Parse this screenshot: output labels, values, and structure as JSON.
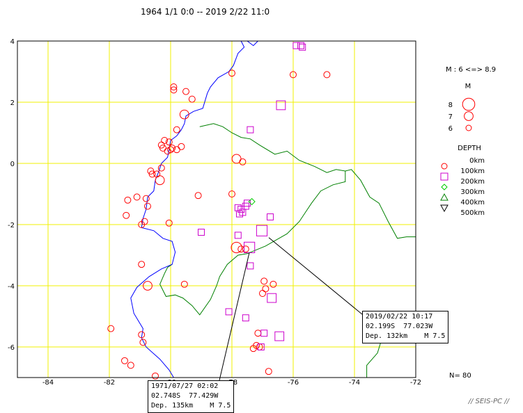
{
  "title": "1964 1/1 0:0 -- 2019 2/22 11:0",
  "map": {
    "lon_range": [
      -85,
      -72
    ],
    "lat_range": [
      -7,
      4
    ],
    "x_ticks": [
      "-84",
      "-82",
      "-80",
      "-78",
      "-76",
      "-74",
      "-72"
    ],
    "y_ticks": [
      "4",
      "2",
      "0",
      "-2",
      "-4",
      "-6"
    ],
    "grid_color": "#f0f000",
    "coast_color": "#0000ff",
    "border_color": "#008000"
  },
  "legend": {
    "m_range": "M : 6 <=> 8.9",
    "m_title": "M",
    "m_labels": [
      "8",
      "7",
      "6"
    ],
    "depth_title": "DEPTH",
    "depth_labels": [
      "0km",
      "100km",
      "200km",
      "300km",
      "400km",
      "500km"
    ],
    "depth_colors": [
      "#ff0000",
      "#cc00cc",
      "#00cc00",
      "#008000",
      "#000000"
    ]
  },
  "callouts": [
    {
      "line1": "2019/02/22 10:17",
      "line2": "02.199S  77.023W",
      "line3": "Dep. 132km    M 7.5"
    },
    {
      "line1": "1971/07/27 02:02",
      "line2": "02.748S  77.429W",
      "line3": "Dep. 135km    M 7.5"
    }
  ],
  "count_label": "N= 80",
  "footer": "// SEIS-PC //",
  "events": [
    {
      "lon": -78.0,
      "lat": 2.95,
      "m": 6.2,
      "d": "shallow"
    },
    {
      "lon": -76.0,
      "lat": 2.9,
      "m": 6.2,
      "d": "shallow"
    },
    {
      "lon": -74.9,
      "lat": 2.9,
      "m": 6.2,
      "d": "shallow"
    },
    {
      "lon": -79.9,
      "lat": 2.5,
      "m": 6.2,
      "d": "shallow"
    },
    {
      "lon": -79.9,
      "lat": 2.4,
      "m": 6.2,
      "d": "shallow"
    },
    {
      "lon": -79.5,
      "lat": 2.35,
      "m": 6.2,
      "d": "shallow"
    },
    {
      "lon": -79.3,
      "lat": 2.1,
      "m": 6.2,
      "d": "shallow"
    },
    {
      "lon": -79.55,
      "lat": 1.6,
      "m": 7.0,
      "d": "shallow"
    },
    {
      "lon": -79.8,
      "lat": 1.1,
      "m": 6.2,
      "d": "shallow"
    },
    {
      "lon": -80.2,
      "lat": 0.75,
      "m": 6.2,
      "d": "shallow"
    },
    {
      "lon": -80.3,
      "lat": 0.6,
      "m": 6.2,
      "d": "shallow"
    },
    {
      "lon": -80.05,
      "lat": 0.7,
      "m": 6.2,
      "d": "shallow"
    },
    {
      "lon": -79.65,
      "lat": 0.55,
      "m": 6.2,
      "d": "shallow"
    },
    {
      "lon": -79.95,
      "lat": 0.5,
      "m": 6.2,
      "d": "shallow"
    },
    {
      "lon": -80.1,
      "lat": 0.4,
      "m": 6.2,
      "d": "shallow"
    },
    {
      "lon": -80.0,
      "lat": 0.45,
      "m": 6.2,
      "d": "shallow"
    },
    {
      "lon": -79.8,
      "lat": 0.45,
      "m": 6.2,
      "d": "shallow"
    },
    {
      "lon": -80.25,
      "lat": 0.5,
      "m": 6.2,
      "d": "shallow"
    },
    {
      "lon": -77.85,
      "lat": 0.15,
      "m": 7.0,
      "d": "shallow"
    },
    {
      "lon": -77.65,
      "lat": 0.05,
      "m": 6.2,
      "d": "shallow"
    },
    {
      "lon": -80.3,
      "lat": -0.15,
      "m": 6.2,
      "d": "shallow"
    },
    {
      "lon": -80.65,
      "lat": -0.25,
      "m": 6.2,
      "d": "shallow"
    },
    {
      "lon": -80.6,
      "lat": -0.35,
      "m": 6.2,
      "d": "shallow"
    },
    {
      "lon": -80.45,
      "lat": -0.35,
      "m": 6.2,
      "d": "shallow"
    },
    {
      "lon": -80.35,
      "lat": -0.55,
      "m": 7.0,
      "d": "shallow"
    },
    {
      "lon": -78.0,
      "lat": -1.0,
      "m": 6.2,
      "d": "shallow"
    },
    {
      "lon": -79.1,
      "lat": -1.05,
      "m": 6.2,
      "d": "shallow"
    },
    {
      "lon": -81.4,
      "lat": -1.2,
      "m": 6.2,
      "d": "shallow"
    },
    {
      "lon": -81.1,
      "lat": -1.1,
      "m": 6.2,
      "d": "shallow"
    },
    {
      "lon": -80.8,
      "lat": -1.15,
      "m": 6.2,
      "d": "shallow"
    },
    {
      "lon": -80.75,
      "lat": -1.4,
      "m": 6.2,
      "d": "shallow"
    },
    {
      "lon": -81.45,
      "lat": -1.7,
      "m": 6.2,
      "d": "shallow"
    },
    {
      "lon": -80.85,
      "lat": -1.9,
      "m": 6.2,
      "d": "shallow"
    },
    {
      "lon": -80.95,
      "lat": -2.0,
      "m": 6.2,
      "d": "shallow"
    },
    {
      "lon": -80.05,
      "lat": -1.95,
      "m": 6.2,
      "d": "shallow"
    },
    {
      "lon": -77.85,
      "lat": -2.75,
      "m": 7.5,
      "d": "shallow"
    },
    {
      "lon": -77.7,
      "lat": -2.8,
      "m": 6.2,
      "d": "shallow"
    },
    {
      "lon": -77.55,
      "lat": -2.8,
      "m": 6.2,
      "d": "shallow"
    },
    {
      "lon": -80.95,
      "lat": -3.3,
      "m": 6.2,
      "d": "shallow"
    },
    {
      "lon": -80.75,
      "lat": -4.0,
      "m": 7.0,
      "d": "shallow"
    },
    {
      "lon": -79.55,
      "lat": -3.95,
      "m": 6.2,
      "d": "shallow"
    },
    {
      "lon": -76.95,
      "lat": -3.85,
      "m": 6.2,
      "d": "shallow"
    },
    {
      "lon": -76.65,
      "lat": -3.95,
      "m": 6.2,
      "d": "shallow"
    },
    {
      "lon": -76.9,
      "lat": -4.1,
      "m": 6.2,
      "d": "shallow"
    },
    {
      "lon": -77.0,
      "lat": -4.25,
      "m": 6.2,
      "d": "shallow"
    },
    {
      "lon": -81.95,
      "lat": -5.4,
      "m": 6.2,
      "d": "shallow"
    },
    {
      "lon": -80.95,
      "lat": -5.6,
      "m": 6.2,
      "d": "shallow"
    },
    {
      "lon": -80.9,
      "lat": -5.85,
      "m": 6.2,
      "d": "shallow"
    },
    {
      "lon": -77.15,
      "lat": -5.55,
      "m": 6.2,
      "d": "shallow"
    },
    {
      "lon": -77.2,
      "lat": -5.95,
      "m": 6.2,
      "d": "shallow"
    },
    {
      "lon": -77.1,
      "lat": -6.0,
      "m": 6.2,
      "d": "shallow"
    },
    {
      "lon": -77.3,
      "lat": -6.05,
      "m": 6.2,
      "d": "shallow"
    },
    {
      "lon": -81.5,
      "lat": -6.45,
      "m": 6.2,
      "d": "shallow"
    },
    {
      "lon": -81.3,
      "lat": -6.6,
      "m": 6.2,
      "d": "shallow"
    },
    {
      "lon": -80.5,
      "lat": -6.95,
      "m": 6.2,
      "d": "shallow"
    },
    {
      "lon": -76.8,
      "lat": -6.8,
      "m": 6.2,
      "d": "shallow"
    },
    {
      "lon": -75.9,
      "lat": 3.85,
      "m": 6.2,
      "d": "intermediate"
    },
    {
      "lon": -75.75,
      "lat": 3.85,
      "m": 6.2,
      "d": "intermediate"
    },
    {
      "lon": -75.7,
      "lat": 3.8,
      "m": 6.2,
      "d": "intermediate"
    },
    {
      "lon": -76.4,
      "lat": 1.9,
      "m": 7.0,
      "d": "intermediate"
    },
    {
      "lon": -77.4,
      "lat": 1.1,
      "m": 6.2,
      "d": "intermediate"
    },
    {
      "lon": -77.5,
      "lat": -1.3,
      "m": 6.2,
      "d": "intermediate"
    },
    {
      "lon": -77.55,
      "lat": -1.4,
      "m": 6.2,
      "d": "intermediate"
    },
    {
      "lon": -77.8,
      "lat": -1.45,
      "m": 6.2,
      "d": "intermediate"
    },
    {
      "lon": -77.7,
      "lat": -1.5,
      "m": 6.2,
      "d": "intermediate"
    },
    {
      "lon": -77.75,
      "lat": -1.65,
      "m": 6.2,
      "d": "intermediate"
    },
    {
      "lon": -77.65,
      "lat": -1.6,
      "m": 6.2,
      "d": "intermediate"
    },
    {
      "lon": -76.75,
      "lat": -1.75,
      "m": 6.2,
      "d": "intermediate"
    },
    {
      "lon": -79.0,
      "lat": -2.25,
      "m": 6.2,
      "d": "intermediate"
    },
    {
      "lon": -77.8,
      "lat": -2.35,
      "m": 6.2,
      "d": "intermediate"
    },
    {
      "lon": -77.023,
      "lat": -2.199,
      "m": 7.5,
      "d": "intermediate"
    },
    {
      "lon": -77.429,
      "lat": -2.748,
      "m": 7.5,
      "d": "intermediate"
    },
    {
      "lon": -77.4,
      "lat": -3.35,
      "m": 6.2,
      "d": "intermediate"
    },
    {
      "lon": -76.7,
      "lat": -4.4,
      "m": 7.0,
      "d": "intermediate"
    },
    {
      "lon": -78.1,
      "lat": -4.85,
      "m": 6.2,
      "d": "intermediate"
    },
    {
      "lon": -77.55,
      "lat": -5.05,
      "m": 6.2,
      "d": "intermediate"
    },
    {
      "lon": -76.95,
      "lat": -5.55,
      "m": 6.2,
      "d": "intermediate"
    },
    {
      "lon": -76.45,
      "lat": -5.65,
      "m": 7.0,
      "d": "intermediate"
    },
    {
      "lon": -77.05,
      "lat": -6.0,
      "m": 6.2,
      "d": "intermediate"
    },
    {
      "lon": -77.35,
      "lat": -1.25,
      "m": 6.2,
      "d": "deep"
    }
  ]
}
